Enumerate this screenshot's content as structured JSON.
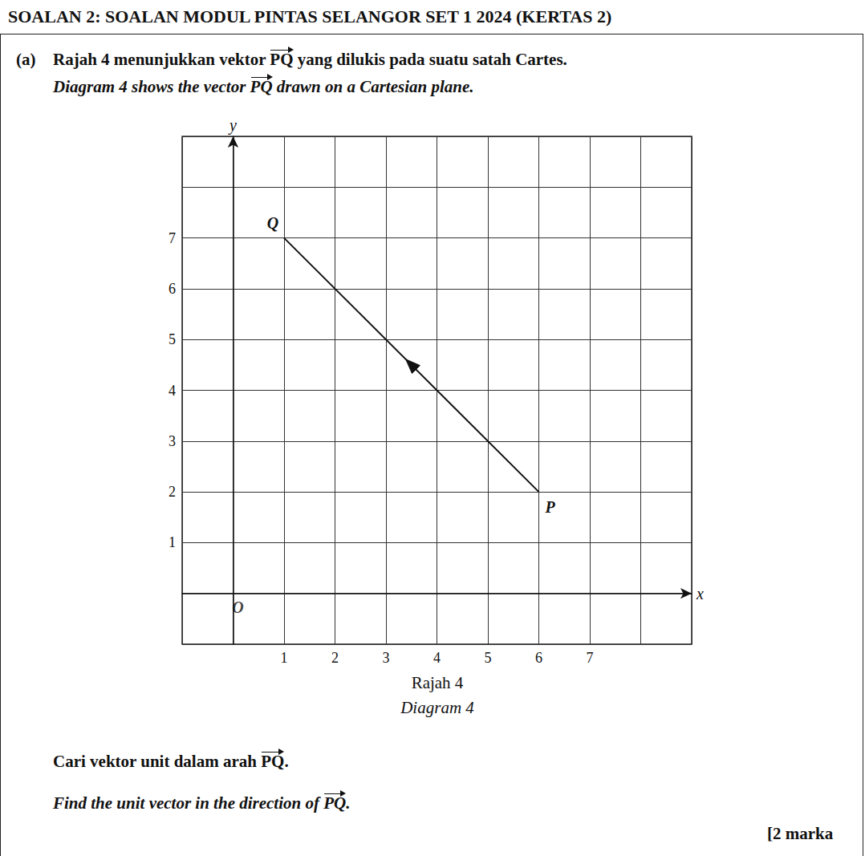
{
  "header": "SOALAN 2: SOALAN MODUL PINTAS SELANGOR SET 1 2024 (KERTAS 2)",
  "question": {
    "label": "(a)",
    "malay": [
      "Rajah 4 menunjukkan vektor ",
      {
        "vector": "PQ"
      },
      " yang dilukis pada suatu satah Cartes."
    ],
    "english": [
      "Diagram 4 shows the vector ",
      {
        "vector": "PQ"
      },
      " drawn on a Cartesian plane."
    ]
  },
  "chart_data": {
    "type": "vector",
    "xlim": [
      -1,
      9
    ],
    "ylim": [
      -1,
      9
    ],
    "xticks": [
      1,
      2,
      3,
      4,
      5,
      6,
      7
    ],
    "yticks": [
      1,
      2,
      3,
      4,
      5,
      6,
      7
    ],
    "grid": true,
    "x_label": "x",
    "y_label": "y",
    "origin": {
      "label": "O",
      "x": 0,
      "y": 0
    },
    "points": [
      {
        "label": "P",
        "x": 6,
        "y": 2
      },
      {
        "label": "Q",
        "x": 1,
        "y": 7
      }
    ],
    "color": "#111111"
  },
  "caption": {
    "malay": "Rajah 4",
    "english": "Diagram 4"
  },
  "task": {
    "malay": [
      "Cari vektor unit dalam arah ",
      {
        "vector": "PQ"
      },
      "."
    ],
    "english": [
      "Find the unit vector in the direction of ",
      {
        "vector": "PQ"
      },
      "."
    ]
  },
  "marks": "[2 marka"
}
